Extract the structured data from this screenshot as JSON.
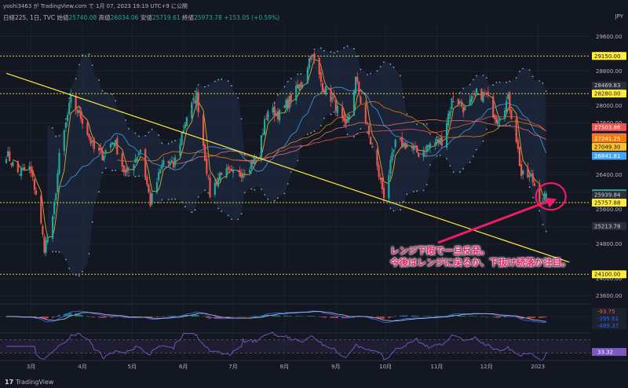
{
  "header": {
    "author_line": "yoshi3463 が TradingView.com で 1月 07, 2023 19:19 UTC+9 に公開",
    "symbol": "日経225, 1日, TVC",
    "open_label": "始値",
    "open": "25740.08",
    "high_label": "高値",
    "high": "26034.06",
    "low_label": "安値",
    "low": "25719.61",
    "close_label": "終値",
    "close": "25973.78",
    "change": "+153.05 (+0.59%)",
    "currency": "JPY"
  },
  "footer": {
    "logo": "17",
    "brand": "TradingView"
  },
  "annotation": {
    "line1": "レンジ下限で一旦反発。",
    "line2": "今後はレンジに戻るか、下抜け続落か注目。"
  },
  "colors": {
    "background": "#131722",
    "up": "#26a69a",
    "down": "#ef5350",
    "horizontal_level": "#ffeb3b",
    "trendline": "#ffeb3b",
    "annotation": "#e91e63",
    "bollinger": "#90a4c8"
  },
  "chart_data": {
    "type": "candlestick",
    "symbol": "日経225",
    "timeframe": "1日",
    "x_tick_labels": [
      "3月",
      "4月",
      "5月",
      "6月",
      "7月",
      "8月",
      "9月",
      "10月",
      "11月",
      "12月",
      "2023"
    ],
    "y_tick_labels": [
      "23600.00",
      "24000.00",
      "24800.00",
      "25200.00",
      "25600.00",
      "26000.00",
      "26400.00",
      "26800.00",
      "27200.00",
      "27600.00",
      "28000.00",
      "28400.00",
      "28800.00",
      "29200.00",
      "29600.00"
    ],
    "ylim": [
      23450,
      29900
    ],
    "horizontal_levels": [
      29150,
      28280,
      25757.88,
      24100
    ],
    "trendline": {
      "start": [
        "2022-02-14",
        28750
      ],
      "end": [
        "2023-01-20",
        24380
      ]
    },
    "price_labels": [
      {
        "value": "29150.00",
        "price": 29150,
        "color": "#ffeb3b",
        "text_color": "#131722"
      },
      {
        "value": "28469.83",
        "price": 28469.83,
        "color": "#2a2e39",
        "text_color": "#d1d4dc"
      },
      {
        "value": "28280.00",
        "price": 28280,
        "color": "#ffeb3b",
        "text_color": "#131722"
      },
      {
        "value": "27503.86",
        "price": 27503.86,
        "color": "#ef5350",
        "text_color": "#ffffff"
      },
      {
        "value": "27271.65",
        "price": 27271.65,
        "color": "#e57373",
        "text_color": "#ffffff"
      },
      {
        "value": "27241.25",
        "price": 27241.25,
        "color": "#f57c00",
        "text_color": "#ffffff"
      },
      {
        "value": "27049.30",
        "price": 27049.3,
        "color": "#fbc02d",
        "text_color": "#131722"
      },
      {
        "value": "26841.81",
        "price": 26841.81,
        "color": "#42a5f5",
        "text_color": "#ffffff"
      },
      {
        "value": "25973.78",
        "price": 25973.78,
        "color": "#26a69a",
        "text_color": "#ffffff"
      },
      {
        "value": "25939.84",
        "price": 25939.84,
        "color": "#2a2e39",
        "text_color": "#d1d4dc"
      },
      {
        "value": "25757.88",
        "price": 25757.88,
        "color": "#ffeb3b",
        "text_color": "#131722"
      },
      {
        "value": "25213.78",
        "price": 25213.78,
        "color": "#2a2e39",
        "text_color": "#d1d4dc"
      },
      {
        "value": "24100.00",
        "price": 24100,
        "color": "#ffeb3b",
        "text_color": "#131722"
      }
    ],
    "macd_labels": [
      "-93.75",
      "-395.61",
      "-489.37"
    ],
    "rsi_label": "33.32",
    "price_anchors": [
      [
        "2022-02-14",
        26900
      ],
      [
        "2022-02-21",
        26450
      ],
      [
        "2022-02-28",
        26550
      ],
      [
        "2022-03-04",
        25980
      ],
      [
        "2022-03-09",
        24720
      ],
      [
        "2022-03-14",
        25330
      ],
      [
        "2022-03-18",
        26800
      ],
      [
        "2022-03-25",
        28150
      ],
      [
        "2022-04-01",
        27670
      ],
      [
        "2022-04-08",
        26980
      ],
      [
        "2022-04-13",
        26850
      ],
      [
        "2022-04-20",
        27220
      ],
      [
        "2022-04-27",
        26390
      ],
      [
        "2022-05-06",
        27000
      ],
      [
        "2022-05-12",
        25750
      ],
      [
        "2022-05-20",
        26730
      ],
      [
        "2022-05-26",
        26600
      ],
      [
        "2022-06-03",
        27760
      ],
      [
        "2022-06-09",
        28240
      ],
      [
        "2022-06-17",
        25960
      ],
      [
        "2022-06-24",
        26490
      ],
      [
        "2022-06-30",
        26390
      ],
      [
        "2022-07-05",
        26420
      ],
      [
        "2022-07-15",
        26790
      ],
      [
        "2022-07-22",
        27910
      ],
      [
        "2022-07-29",
        27800
      ],
      [
        "2022-08-05",
        28180
      ],
      [
        "2022-08-12",
        28550
      ],
      [
        "2022-08-17",
        29220
      ],
      [
        "2022-08-24",
        28450
      ],
      [
        "2022-08-31",
        28090
      ],
      [
        "2022-09-07",
        27430
      ],
      [
        "2022-09-13",
        28610
      ],
      [
        "2022-09-22",
        27150
      ],
      [
        "2022-09-30",
        25940
      ],
      [
        "2022-10-07",
        27120
      ],
      [
        "2022-10-14",
        27090
      ],
      [
        "2022-10-21",
        26890
      ],
      [
        "2022-10-28",
        27110
      ],
      [
        "2022-11-04",
        27200
      ],
      [
        "2022-11-11",
        28260
      ],
      [
        "2022-11-18",
        27900
      ],
      [
        "2022-11-25",
        28280
      ],
      [
        "2022-12-01",
        28230
      ],
      [
        "2022-12-07",
        27690
      ],
      [
        "2022-12-14",
        28150
      ],
      [
        "2022-12-19",
        27240
      ],
      [
        "2022-12-22",
        26390
      ],
      [
        "2022-12-28",
        26340
      ],
      [
        "2023-01-04",
        25720
      ],
      [
        "2023-01-06",
        25973.78
      ]
    ]
  }
}
